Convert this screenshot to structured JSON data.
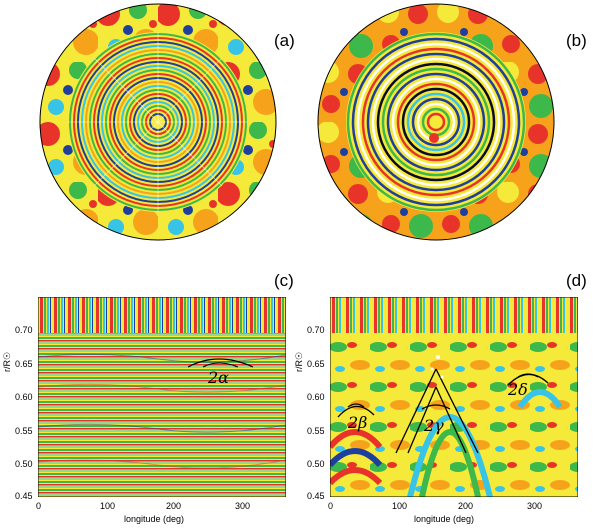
{
  "labels": {
    "a": "(a)",
    "b": "(b)",
    "c": "(c)",
    "d": "(d)"
  },
  "plot_c": {
    "ytick_labels": [
      "0.70",
      "0.65",
      "0.60",
      "0.55",
      "0.50",
      "0.45"
    ],
    "xtick_labels": [
      "0",
      "100",
      "200",
      "300"
    ],
    "xlabel": "longitude (deg)",
    "ylabel": "r/R☉",
    "annotation": "2α"
  },
  "plot_d": {
    "ytick_labels": [
      "0.70",
      "0.65",
      "0.60",
      "0.55",
      "0.50",
      "0.45"
    ],
    "xtick_labels": [
      "0",
      "100",
      "200",
      "300"
    ],
    "xlabel": "longitude (deg)",
    "ylabel": "r/R☉",
    "annotations": [
      "2β",
      "2γ",
      "2δ"
    ]
  },
  "colors": {
    "red": "#e8332a",
    "orange": "#f7a21b",
    "yellow": "#f5e93a",
    "green": "#3db84a",
    "cyan": "#38c4e6",
    "blue": "#1e3f9e",
    "dark": "#0a0a2a",
    "white": "#ffffff"
  }
}
